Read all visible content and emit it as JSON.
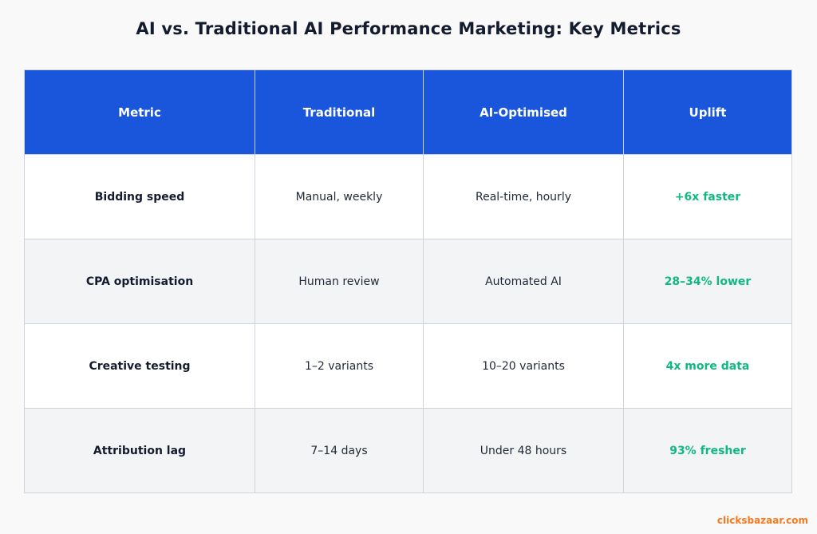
{
  "title": "AI vs. Traditional AI Performance Marketing: Key Metrics",
  "chart_data": {
    "type": "table",
    "title": "AI vs. Traditional AI Performance Marketing: Key Metrics",
    "columns": [
      "Metric",
      "Traditional",
      "AI-Optimised",
      "Uplift"
    ],
    "rows": [
      {
        "metric": "Bidding speed",
        "traditional": "Manual, weekly",
        "ai": "Real-time, hourly",
        "uplift": "+6x faster"
      },
      {
        "metric": "CPA optimisation",
        "traditional": "Human review",
        "ai": "Automated AI",
        "uplift": "28–34% lower"
      },
      {
        "metric": "Creative testing",
        "traditional": "1–2 variants",
        "ai": "10–20 variants",
        "uplift": "4x more data"
      },
      {
        "metric": "Attribution lag",
        "traditional": "7–14 days",
        "ai": "Under 48 hours",
        "uplift": "93% fresher"
      }
    ]
  },
  "watermark": "clicksbazaar.com",
  "colors": {
    "header_bg": "#1a56db",
    "uplift_text": "#10b981",
    "watermark": "#f47b20"
  }
}
